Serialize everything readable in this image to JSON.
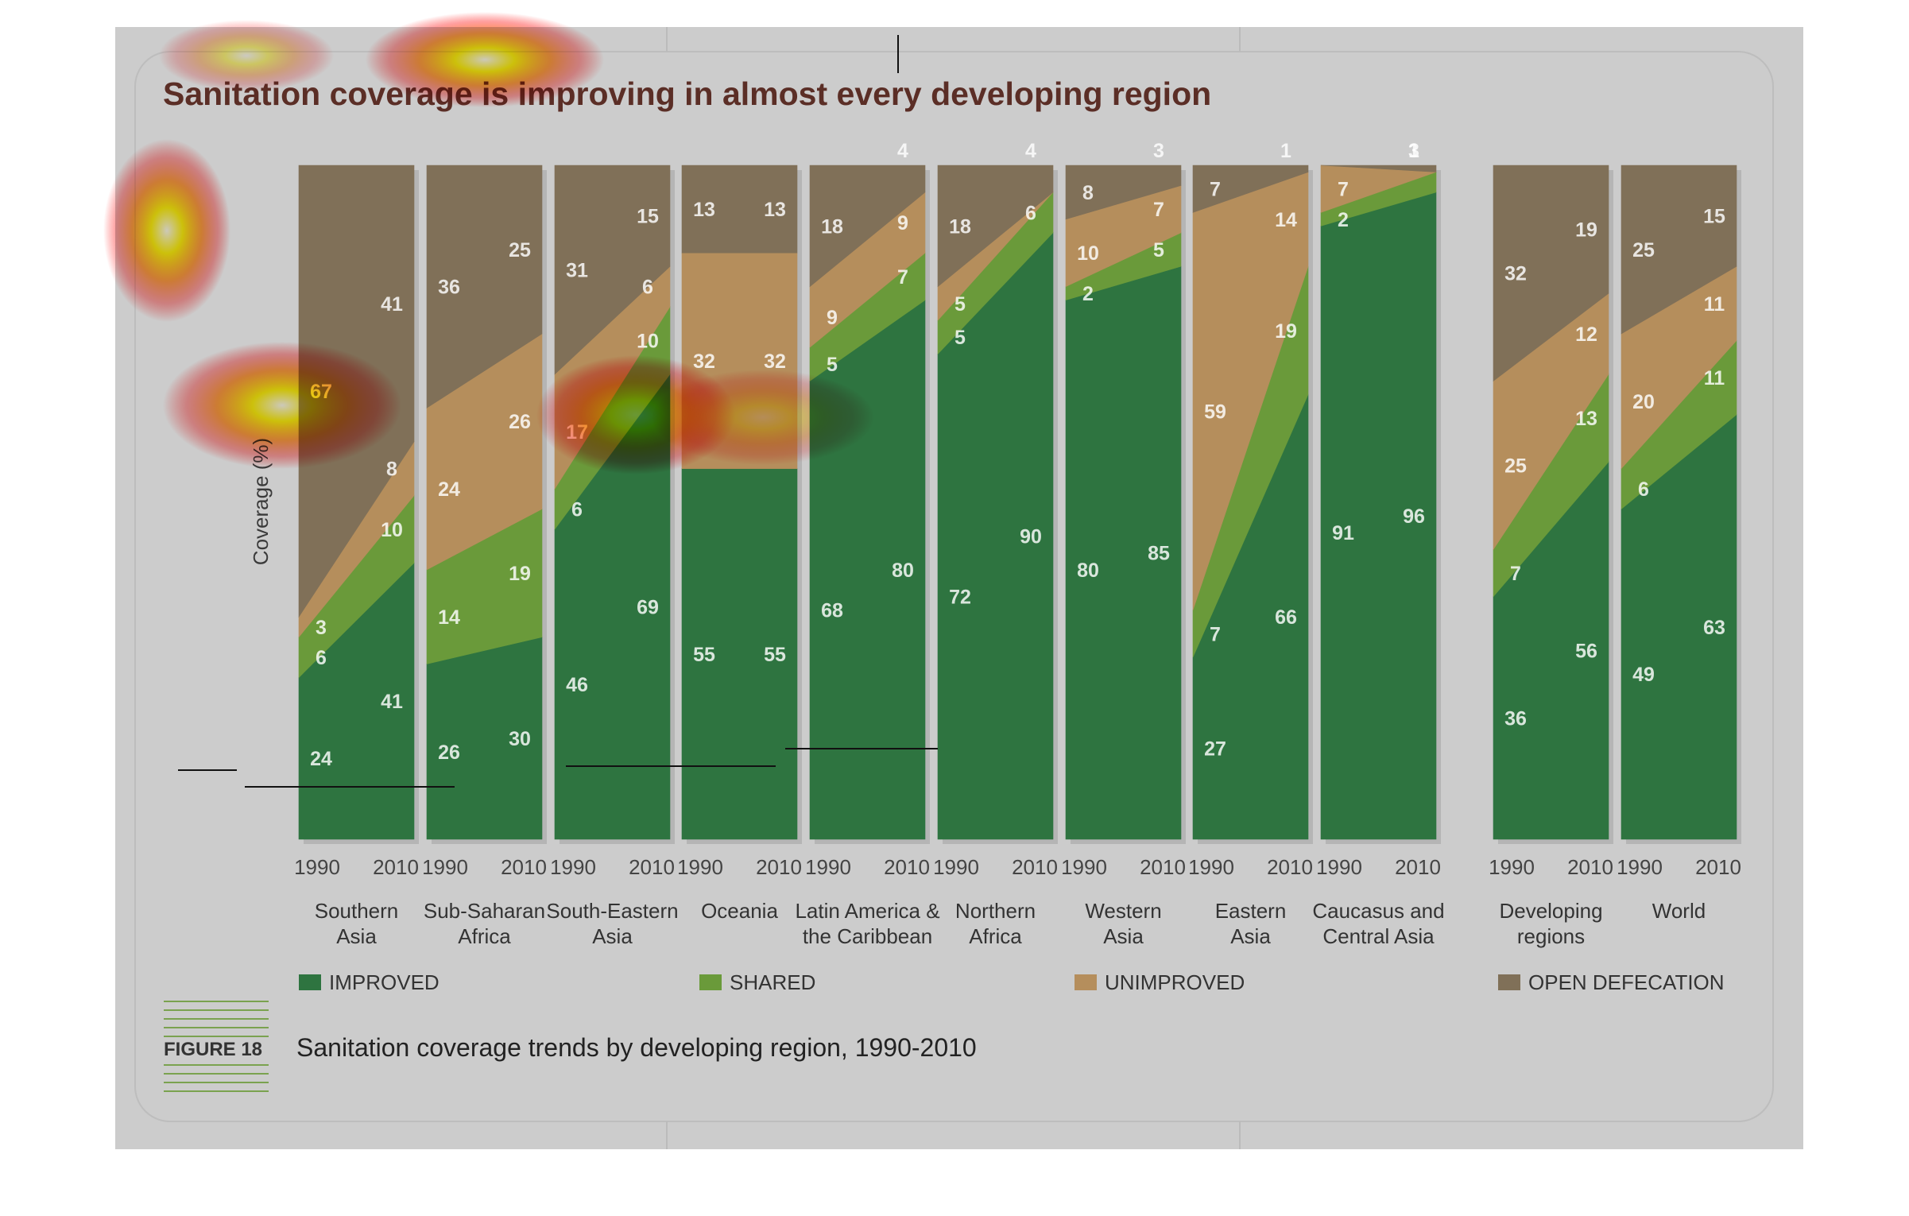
{
  "chart_data": {
    "type": "area",
    "title": "Sanitation coverage is improving in almost every developing region",
    "ylabel": "Coverage (%)",
    "ylim": [
      0,
      100
    ],
    "years": [
      "1990",
      "2010"
    ],
    "series_names": [
      "IMPROVED",
      "SHARED",
      "UNIMPROVED",
      "OPEN DEFECATION"
    ],
    "colors": {
      "IMPROVED": "#2e7440",
      "SHARED": "#6a9a3a",
      "UNIMPROVED": "#b58e5c",
      "OPEN DEFECATION": "#807058",
      "background": "#cccccc"
    },
    "figure_label": "FIGURE 18",
    "caption": "Sanitation coverage trends by developing region, 1990-2010",
    "regions": [
      {
        "name": [
          "Southern",
          "Asia"
        ],
        "improved": [
          24,
          41
        ],
        "shared": [
          6,
          10
        ],
        "unimproved": [
          3,
          8
        ],
        "open_defecation": [
          67,
          41
        ]
      },
      {
        "name": [
          "Sub-Saharan",
          "Africa"
        ],
        "improved": [
          26,
          30
        ],
        "shared": [
          14,
          19
        ],
        "unimproved": [
          24,
          26
        ],
        "open_defecation": [
          36,
          25
        ]
      },
      {
        "name": [
          "South-Eastern",
          "Asia"
        ],
        "improved": [
          46,
          69
        ],
        "shared": [
          6,
          10
        ],
        "unimproved": [
          17,
          6
        ],
        "open_defecation": [
          31,
          15
        ]
      },
      {
        "name": [
          "Oceania",
          ""
        ],
        "improved": [
          55,
          55
        ],
        "shared": [
          0,
          0
        ],
        "unimproved": [
          32,
          32
        ],
        "open_defecation": [
          13,
          13
        ]
      },
      {
        "name": [
          "Latin America &",
          "the Caribbean"
        ],
        "improved": [
          68,
          80
        ],
        "shared": [
          5,
          7
        ],
        "unimproved": [
          9,
          9
        ],
        "open_defecation": [
          18,
          4
        ]
      },
      {
        "name": [
          "Northern",
          "Africa"
        ],
        "improved": [
          72,
          90
        ],
        "shared": [
          5,
          6
        ],
        "unimproved": [
          5,
          0
        ],
        "open_defecation": [
          18,
          4
        ]
      },
      {
        "name": [
          "Western",
          "Asia"
        ],
        "improved": [
          80,
          85
        ],
        "shared": [
          2,
          5
        ],
        "unimproved": [
          10,
          7
        ],
        "open_defecation": [
          8,
          3
        ]
      },
      {
        "name": [
          "Eastern",
          "Asia"
        ],
        "improved": [
          27,
          66
        ],
        "shared": [
          7,
          19
        ],
        "unimproved": [
          59,
          14
        ],
        "open_defecation": [
          7,
          1
        ]
      },
      {
        "name": [
          "Caucasus and",
          "Central Asia"
        ],
        "improved": [
          91,
          96
        ],
        "shared": [
          2,
          3
        ],
        "unimproved": [
          7,
          0
        ],
        "open_defecation": [
          0,
          1
        ]
      },
      {
        "name": [
          "Developing",
          "regions"
        ],
        "improved": [
          36,
          56
        ],
        "shared": [
          7,
          13
        ],
        "unimproved": [
          25,
          12
        ],
        "open_defecation": [
          32,
          19
        ]
      },
      {
        "name": [
          "World",
          ""
        ],
        "improved": [
          49,
          63
        ],
        "shared": [
          6,
          11
        ],
        "unimproved": [
          20,
          11
        ],
        "open_defecation": [
          25,
          15
        ]
      }
    ]
  }
}
